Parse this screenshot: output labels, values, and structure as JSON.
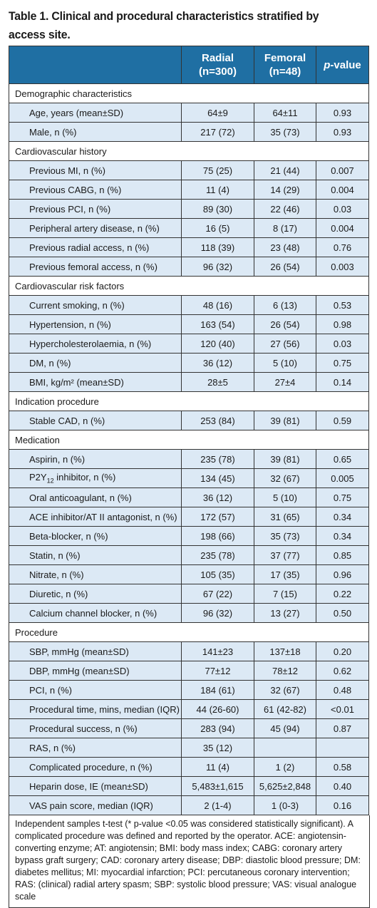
{
  "caption": "Table 1. Clinical and procedural characteristics stratified by access site.",
  "header": {
    "radial_line1": "Radial",
    "radial_line2": "(n=300)",
    "femoral_line1": "Femoral",
    "femoral_line2": "(n=48)",
    "p_italic": "p",
    "p_rest": "-value"
  },
  "sections": [
    {
      "title": "Demographic characteristics",
      "rows": [
        {
          "label": "Age, years (mean±SD)",
          "radial": "64±9",
          "femoral": "64±11",
          "p": "0.93"
        },
        {
          "label": "Male, n (%)",
          "radial": "217 (72)",
          "femoral": "35 (73)",
          "p": "0.93"
        }
      ]
    },
    {
      "title": "Cardiovascular history",
      "rows": [
        {
          "label": "Previous MI, n (%)",
          "radial": "75 (25)",
          "femoral": "21 (44)",
          "p": "0.007"
        },
        {
          "label": "Previous CABG, n (%)",
          "radial": "11 (4)",
          "femoral": "14 (29)",
          "p": "0.004"
        },
        {
          "label": "Previous PCI, n (%)",
          "radial": "89 (30)",
          "femoral": "22 (46)",
          "p": "0.03"
        },
        {
          "label": "Peripheral artery disease, n (%)",
          "radial": "16 (5)",
          "femoral": "8 (17)",
          "p": "0.004"
        },
        {
          "label": "Previous radial access, n (%)",
          "radial": "118 (39)",
          "femoral": "23 (48)",
          "p": "0.76"
        },
        {
          "label": "Previous femoral access, n (%)",
          "radial": "96 (32)",
          "femoral": "26 (54)",
          "p": "0.003"
        }
      ]
    },
    {
      "title": "Cardiovascular risk factors",
      "rows": [
        {
          "label": "Current smoking, n (%)",
          "radial": "48 (16)",
          "femoral": "6 (13)",
          "p": "0.53"
        },
        {
          "label": "Hypertension, n (%)",
          "radial": "163 (54)",
          "femoral": "26 (54)",
          "p": "0.98"
        },
        {
          "label": "Hypercholesterolaemia, n (%)",
          "radial": "120 (40)",
          "femoral": "27 (56)",
          "p": "0.03"
        },
        {
          "label": "DM, n (%)",
          "radial": "36 (12)",
          "femoral": "5 (10)",
          "p": "0.75"
        },
        {
          "label": "BMI, kg/m² (mean±SD)",
          "radial": "28±5",
          "femoral": "27±4",
          "p": "0.14"
        }
      ]
    },
    {
      "title": "Indication procedure",
      "rows": [
        {
          "label": "Stable CAD, n (%)",
          "radial": "253 (84)",
          "femoral": "39 (81)",
          "p": "0.59"
        }
      ]
    },
    {
      "title": "Medication",
      "rows": [
        {
          "label": "Aspirin, n (%)",
          "radial": "235 (78)",
          "femoral": "39 (81)",
          "p": "0.65"
        },
        {
          "label": "P2Y",
          "sub": "12",
          "label_after": " inhibitor, n (%)",
          "radial": "134 (45)",
          "femoral": "32 (67)",
          "p": "0.005"
        },
        {
          "label": "Oral anticoagulant, n (%)",
          "radial": "36 (12)",
          "femoral": "5 (10)",
          "p": "0.75"
        },
        {
          "label": "ACE inhibitor/AT II antagonist, n (%)",
          "radial": "172 (57)",
          "femoral": "31 (65)",
          "p": "0.34"
        },
        {
          "label": "Beta-blocker, n (%)",
          "radial": "198 (66)",
          "femoral": "35 (73)",
          "p": "0.34"
        },
        {
          "label": "Statin, n (%)",
          "radial": "235 (78)",
          "femoral": "37 (77)",
          "p": "0.85"
        },
        {
          "label": "Nitrate, n (%)",
          "radial": "105 (35)",
          "femoral": "17 (35)",
          "p": "0.96"
        },
        {
          "label": "Diuretic, n (%)",
          "radial": "67 (22)",
          "femoral": "7 (15)",
          "p": "0.22"
        },
        {
          "label": "Calcium channel blocker, n (%)",
          "radial": "96 (32)",
          "femoral": "13 (27)",
          "p": "0.50"
        }
      ]
    },
    {
      "title": "Procedure",
      "rows": [
        {
          "label": "SBP, mmHg (mean±SD)",
          "radial": "141±23",
          "femoral": "137±18",
          "p": "0.20"
        },
        {
          "label": "DBP, mmHg (mean±SD)",
          "radial": "77±12",
          "femoral": "78±12",
          "p": "0.62"
        },
        {
          "label": "PCI, n (%)",
          "radial": "184 (61)",
          "femoral": "32 (67)",
          "p": "0.48"
        },
        {
          "label": "Procedural time, mins, median (IQR)",
          "radial": "44 (26-60)",
          "femoral": "61 (42-82)",
          "p": "<0.01"
        },
        {
          "label": "Procedural success, n (%)",
          "radial": "283 (94)",
          "femoral": "45 (94)",
          "p": "0.87"
        },
        {
          "label": "RAS, n (%)",
          "radial": "35 (12)",
          "femoral": "",
          "p": ""
        },
        {
          "label": "Complicated procedure, n (%)",
          "radial": "11 (4)",
          "femoral": "1 (2)",
          "p": "0.58"
        },
        {
          "label": "Heparin dose, IE (mean±SD)",
          "radial": "5,483±1,615",
          "femoral": "5,625±2,848",
          "p": "0.40"
        },
        {
          "label": "VAS pain score, median (IQR)",
          "radial": "2 (1-4)",
          "femoral": "1 (0-3)",
          "p": "0.16"
        }
      ]
    }
  ],
  "footnote": "Independent samples t-test (* p-value <0.05 was considered statistically significant). A complicated procedure was defined and reported by the operator. ACE: angiotensin-converting enzyme; AT: angiotensin; BMI: body mass index; CABG: coronary artery bypass graft surgery; CAD: coronary artery disease; DBP: diastolic blood pressure; DM: diabetes mellitus; MI: myocardial infarction; PCI: percutaneous coronary intervention; RAS: (clinical) radial artery spasm; SBP: systolic blood pressure; VAS: visual analogue scale",
  "colors": {
    "header_bg": "#1f6fa3",
    "row_bg": "#dce9f5",
    "section_bg": "#ffffff"
  }
}
